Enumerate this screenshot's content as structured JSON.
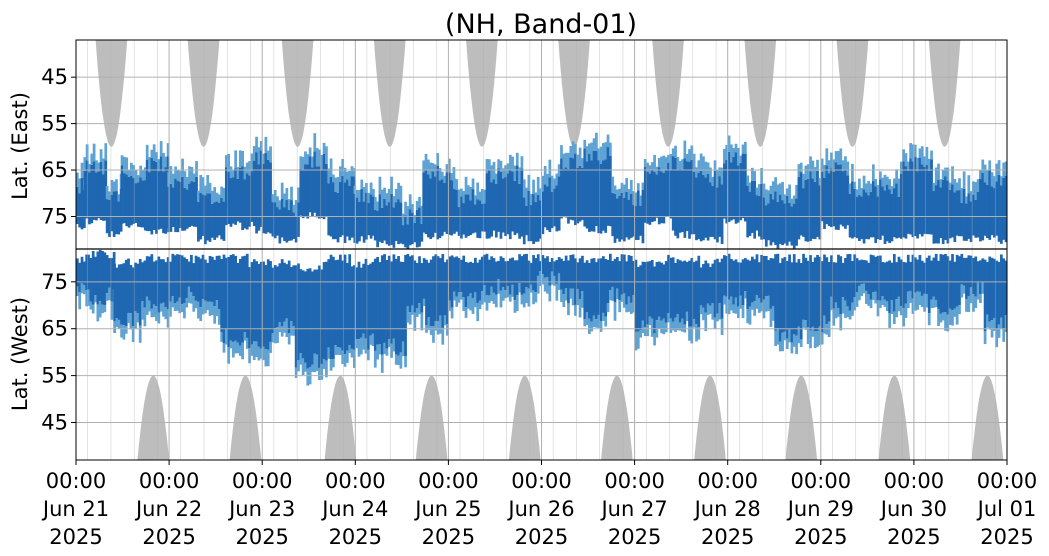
{
  "chart_data": {
    "type": "heatmap",
    "title": "(NH, Band-01)",
    "upper_panel_ylabel": "Lat. (East)",
    "lower_panel_ylabel": "Lat. (West)",
    "x_tick_labels": [
      [
        "00:00",
        "Jun 21",
        "2025"
      ],
      [
        "00:00",
        "Jun 22",
        "2025"
      ],
      [
        "00:00",
        "Jun 23",
        "2025"
      ],
      [
        "00:00",
        "Jun 24",
        "2025"
      ],
      [
        "00:00",
        "Jun 25",
        "2025"
      ],
      [
        "00:00",
        "Jun 26",
        "2025"
      ],
      [
        "00:00",
        "Jun 27",
        "2025"
      ],
      [
        "00:00",
        "Jun 28",
        "2025"
      ],
      [
        "00:00",
        "Jun 29",
        "2025"
      ],
      [
        "00:00",
        "Jun 30",
        "2025"
      ],
      [
        "00:00",
        "Jul 01",
        "2025"
      ]
    ],
    "x_range_days": [
      0,
      10
    ],
    "upper_y_ticks": [
      "45",
      "55",
      "65",
      "75"
    ],
    "lower_y_ticks": [
      "75",
      "65",
      "55",
      "45"
    ],
    "y_tick_values": [
      45,
      55,
      65,
      75
    ],
    "lat_range": [
      37,
      82
    ],
    "grid": true,
    "colors": {
      "strong": "#1f67b1",
      "weak": "#5ea3d3",
      "no_data": "#bdbdbd",
      "grid": "#b0b0b0"
    },
    "no_data_lobes_east": [
      0.38,
      1.37,
      2.38,
      3.37,
      4.36,
      5.35,
      6.36,
      7.35,
      8.34,
      9.33
    ],
    "no_data_lobes_west": [
      0.83,
      1.82,
      2.84,
      3.82,
      4.82,
      5.81,
      6.81,
      7.79,
      8.79,
      9.79
    ],
    "activity_upper": [
      [
        0.0,
        0.08,
        68,
        77
      ],
      [
        0.08,
        0.32,
        64,
        76
      ],
      [
        0.32,
        0.48,
        70,
        79
      ],
      [
        0.48,
        0.75,
        66,
        77
      ],
      [
        0.75,
        0.98,
        64,
        78
      ],
      [
        0.98,
        1.3,
        68,
        78
      ],
      [
        1.3,
        1.6,
        71,
        80
      ],
      [
        1.6,
        1.9,
        65,
        77
      ],
      [
        1.9,
        2.1,
        62,
        78
      ],
      [
        2.1,
        2.4,
        73,
        80
      ],
      [
        2.4,
        2.7,
        63,
        75
      ],
      [
        2.7,
        2.98,
        68,
        80
      ],
      [
        2.98,
        3.2,
        71,
        80
      ],
      [
        3.2,
        3.5,
        72,
        81
      ],
      [
        3.5,
        3.72,
        75,
        81
      ],
      [
        3.72,
        4.05,
        66,
        79
      ],
      [
        4.05,
        4.4,
        71,
        79
      ],
      [
        4.4,
        4.8,
        66,
        79
      ],
      [
        4.8,
        5.0,
        71,
        80
      ],
      [
        5.0,
        5.2,
        68,
        78
      ],
      [
        5.2,
        5.45,
        63,
        76
      ],
      [
        5.45,
        5.75,
        62,
        78
      ],
      [
        5.75,
        6.1,
        71,
        80
      ],
      [
        6.1,
        6.4,
        65,
        76
      ],
      [
        6.4,
        6.65,
        64,
        79
      ],
      [
        6.65,
        6.95,
        67,
        80
      ],
      [
        6.95,
        7.2,
        63,
        76
      ],
      [
        7.2,
        7.4,
        69,
        79
      ],
      [
        7.4,
        7.75,
        71,
        81
      ],
      [
        7.75,
        8.0,
        67,
        80
      ],
      [
        8.0,
        8.3,
        65,
        77
      ],
      [
        8.3,
        8.55,
        69,
        80
      ],
      [
        8.55,
        8.85,
        69,
        80
      ],
      [
        8.85,
        9.2,
        64,
        79
      ],
      [
        9.2,
        9.45,
        68,
        80
      ],
      [
        9.45,
        9.7,
        71,
        80
      ],
      [
        9.7,
        10.0,
        67,
        80
      ]
    ],
    "activity_lower": [
      [
        0.0,
        0.12,
        73,
        80
      ],
      [
        0.12,
        0.4,
        72,
        81
      ],
      [
        0.4,
        0.7,
        67,
        79
      ],
      [
        0.7,
        1.0,
        70,
        80
      ],
      [
        1.0,
        1.3,
        72,
        80
      ],
      [
        1.3,
        1.55,
        70,
        80
      ],
      [
        1.55,
        1.85,
        63,
        80
      ],
      [
        1.85,
        2.1,
        61,
        79
      ],
      [
        2.1,
        2.35,
        66,
        79
      ],
      [
        2.35,
        2.65,
        58,
        78
      ],
      [
        2.65,
        2.95,
        60,
        80
      ],
      [
        2.95,
        3.2,
        62,
        79
      ],
      [
        3.2,
        3.55,
        61,
        80
      ],
      [
        3.55,
        3.75,
        70,
        80
      ],
      [
        3.75,
        4.0,
        66,
        80
      ],
      [
        4.0,
        4.35,
        71,
        80
      ],
      [
        4.35,
        4.7,
        74,
        80
      ],
      [
        4.7,
        4.95,
        73,
        80
      ],
      [
        4.95,
        5.2,
        76,
        80
      ],
      [
        5.2,
        5.45,
        72,
        80
      ],
      [
        5.45,
        5.7,
        67,
        80
      ],
      [
        5.7,
        6.0,
        72,
        80
      ],
      [
        6.0,
        6.35,
        66,
        79
      ],
      [
        6.35,
        6.7,
        67,
        80
      ],
      [
        6.7,
        6.95,
        69,
        79
      ],
      [
        6.95,
        7.2,
        71,
        80
      ],
      [
        7.2,
        7.5,
        71,
        80
      ],
      [
        7.5,
        7.8,
        64,
        80
      ],
      [
        7.8,
        8.1,
        66,
        80
      ],
      [
        8.1,
        8.35,
        70,
        80
      ],
      [
        8.35,
        8.6,
        73,
        80
      ],
      [
        8.6,
        8.9,
        70,
        80
      ],
      [
        8.9,
        9.15,
        72,
        80
      ],
      [
        9.15,
        9.5,
        70,
        80
      ],
      [
        9.5,
        9.75,
        73,
        80
      ],
      [
        9.75,
        10.0,
        66,
        80
      ]
    ]
  }
}
